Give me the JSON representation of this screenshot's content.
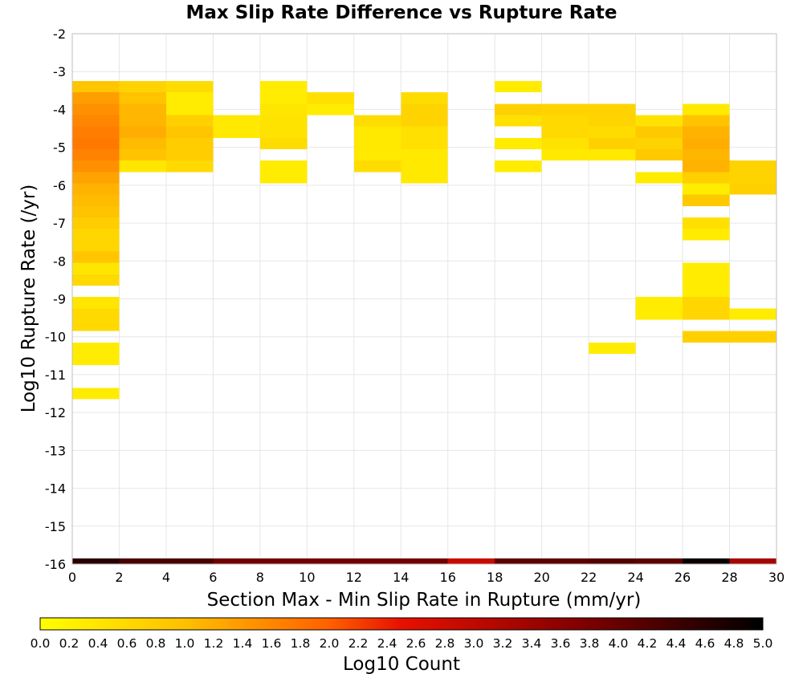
{
  "chart_data": {
    "type": "heatmap",
    "title": "Max Slip Rate Difference vs Rupture Rate",
    "xlabel": "Section Max - Min Slip Rate in Rupture (mm/yr)",
    "ylabel": "Log10 Rupture Rate (/yr)",
    "xlim": [
      0,
      30
    ],
    "ylim": [
      -16,
      -2
    ],
    "x_ticks": [
      "0",
      "2",
      "4",
      "6",
      "8",
      "10",
      "12",
      "14",
      "16",
      "18",
      "20",
      "22",
      "24",
      "26",
      "28",
      "30"
    ],
    "y_ticks": [
      "-2",
      "-3",
      "-4",
      "-5",
      "-6",
      "-7",
      "-8",
      "-9",
      "-10",
      "-11",
      "-12",
      "-13",
      "-14",
      "-15",
      "-16"
    ],
    "x_bin_width": 2,
    "y_bin_height": 0.3,
    "grid": true,
    "colorbar": {
      "label": "Log10 Count",
      "range": [
        0,
        5
      ],
      "ticks": [
        "0.0",
        "0.2",
        "0.4",
        "0.6",
        "0.8",
        "1.0",
        "1.2",
        "1.4",
        "1.6",
        "1.8",
        "2.0",
        "2.2",
        "2.4",
        "2.6",
        "2.8",
        "3.0",
        "3.2",
        "3.4",
        "3.6",
        "3.8",
        "4.0",
        "4.2",
        "4.4",
        "4.6",
        "4.8",
        "5.0"
      ],
      "colors": [
        "#ffff00",
        "#ffc000",
        "#ff6000",
        "#e81000",
        "#800000",
        "#000000"
      ]
    },
    "cells": [
      {
        "x": 0,
        "y": -3.4,
        "v": 0.9
      },
      {
        "x": 0,
        "y": -3.7,
        "v": 1.35
      },
      {
        "x": 0,
        "y": -4.0,
        "v": 1.5
      },
      {
        "x": 0,
        "y": -4.3,
        "v": 1.6
      },
      {
        "x": 0,
        "y": -4.6,
        "v": 1.7
      },
      {
        "x": 0,
        "y": -4.9,
        "v": 1.75
      },
      {
        "x": 0,
        "y": -5.2,
        "v": 1.65
      },
      {
        "x": 0,
        "y": -5.5,
        "v": 1.5
      },
      {
        "x": 0,
        "y": -5.8,
        "v": 1.3
      },
      {
        "x": 0,
        "y": -6.1,
        "v": 1.15
      },
      {
        "x": 0,
        "y": -6.4,
        "v": 1.05
      },
      {
        "x": 0,
        "y": -6.7,
        "v": 0.95
      },
      {
        "x": 0,
        "y": -7.0,
        "v": 0.8
      },
      {
        "x": 0,
        "y": -7.3,
        "v": 0.65
      },
      {
        "x": 0,
        "y": -7.6,
        "v": 0.65
      },
      {
        "x": 0,
        "y": -7.9,
        "v": 0.9
      },
      {
        "x": 0,
        "y": -8.2,
        "v": 0.4
      },
      {
        "x": 0,
        "y": -8.5,
        "v": 0.6
      },
      {
        "x": 0,
        "y": -9.1,
        "v": 0.4
      },
      {
        "x": 0,
        "y": -9.4,
        "v": 0.6
      },
      {
        "x": 0,
        "y": -9.7,
        "v": 0.6
      },
      {
        "x": 0,
        "y": -10.3,
        "v": 0.3
      },
      {
        "x": 0,
        "y": -10.6,
        "v": 0.3
      },
      {
        "x": 0,
        "y": -11.5,
        "v": 0.3
      },
      {
        "x": 2,
        "y": -3.4,
        "v": 0.7
      },
      {
        "x": 2,
        "y": -3.7,
        "v": 0.95
      },
      {
        "x": 2,
        "y": -4.0,
        "v": 1.1
      },
      {
        "x": 2,
        "y": -4.3,
        "v": 1.1
      },
      {
        "x": 2,
        "y": -4.6,
        "v": 1.2
      },
      {
        "x": 2,
        "y": -4.9,
        "v": 1.05
      },
      {
        "x": 2,
        "y": -5.2,
        "v": 0.95
      },
      {
        "x": 2,
        "y": -5.5,
        "v": 0.4
      },
      {
        "x": 4,
        "y": -3.4,
        "v": 0.55
      },
      {
        "x": 4,
        "y": -3.7,
        "v": 0.3
      },
      {
        "x": 4,
        "y": -4.0,
        "v": 0.3
      },
      {
        "x": 4,
        "y": -4.3,
        "v": 0.75
      },
      {
        "x": 4,
        "y": -4.6,
        "v": 0.9
      },
      {
        "x": 4,
        "y": -4.9,
        "v": 0.8
      },
      {
        "x": 4,
        "y": -5.2,
        "v": 0.8
      },
      {
        "x": 4,
        "y": -5.5,
        "v": 0.6
      },
      {
        "x": 6,
        "y": -4.3,
        "v": 0.35
      },
      {
        "x": 6,
        "y": -4.6,
        "v": 0.35
      },
      {
        "x": 8,
        "y": -3.4,
        "v": 0.3
      },
      {
        "x": 8,
        "y": -3.7,
        "v": 0.3
      },
      {
        "x": 8,
        "y": -4.0,
        "v": 0.4
      },
      {
        "x": 8,
        "y": -4.3,
        "v": 0.45
      },
      {
        "x": 8,
        "y": -4.6,
        "v": 0.45
      },
      {
        "x": 8,
        "y": -4.9,
        "v": 0.55
      },
      {
        "x": 8,
        "y": -5.5,
        "v": 0.3
      },
      {
        "x": 8,
        "y": -5.8,
        "v": 0.3
      },
      {
        "x": 10,
        "y": -3.7,
        "v": 0.5
      },
      {
        "x": 10,
        "y": -4.0,
        "v": 0.3
      },
      {
        "x": 12,
        "y": -4.3,
        "v": 0.55
      },
      {
        "x": 12,
        "y": -4.6,
        "v": 0.35
      },
      {
        "x": 12,
        "y": -4.9,
        "v": 0.35
      },
      {
        "x": 12,
        "y": -5.2,
        "v": 0.35
      },
      {
        "x": 12,
        "y": -5.5,
        "v": 0.55
      },
      {
        "x": 14,
        "y": -3.7,
        "v": 0.55
      },
      {
        "x": 14,
        "y": -4.0,
        "v": 0.7
      },
      {
        "x": 14,
        "y": -4.3,
        "v": 0.7
      },
      {
        "x": 14,
        "y": -4.6,
        "v": 0.5
      },
      {
        "x": 14,
        "y": -4.9,
        "v": 0.5
      },
      {
        "x": 14,
        "y": -5.2,
        "v": 0.35
      },
      {
        "x": 14,
        "y": -5.5,
        "v": 0.35
      },
      {
        "x": 14,
        "y": -5.8,
        "v": 0.35
      },
      {
        "x": 18,
        "y": -3.4,
        "v": 0.3
      },
      {
        "x": 18,
        "y": -4.0,
        "v": 0.75
      },
      {
        "x": 18,
        "y": -4.3,
        "v": 0.5
      },
      {
        "x": 18,
        "y": -4.9,
        "v": 0.3
      },
      {
        "x": 18,
        "y": -5.5,
        "v": 0.3
      },
      {
        "x": 20,
        "y": -4.0,
        "v": 0.7
      },
      {
        "x": 20,
        "y": -4.3,
        "v": 0.6
      },
      {
        "x": 20,
        "y": -4.6,
        "v": 0.6
      },
      {
        "x": 20,
        "y": -4.9,
        "v": 0.45
      },
      {
        "x": 20,
        "y": -5.2,
        "v": 0.35
      },
      {
        "x": 22,
        "y": -4.0,
        "v": 0.7
      },
      {
        "x": 22,
        "y": -4.3,
        "v": 0.7
      },
      {
        "x": 22,
        "y": -4.6,
        "v": 0.55
      },
      {
        "x": 22,
        "y": -4.9,
        "v": 0.75
      },
      {
        "x": 22,
        "y": -5.2,
        "v": 0.35
      },
      {
        "x": 22,
        "y": -10.3,
        "v": 0.3
      },
      {
        "x": 24,
        "y": -4.3,
        "v": 0.45
      },
      {
        "x": 24,
        "y": -4.6,
        "v": 0.85
      },
      {
        "x": 24,
        "y": -4.9,
        "v": 0.7
      },
      {
        "x": 24,
        "y": -5.2,
        "v": 0.85
      },
      {
        "x": 24,
        "y": -5.8,
        "v": 0.3
      },
      {
        "x": 24,
        "y": -9.1,
        "v": 0.3
      },
      {
        "x": 24,
        "y": -9.4,
        "v": 0.3
      },
      {
        "x": 26,
        "y": -4.0,
        "v": 0.35
      },
      {
        "x": 26,
        "y": -4.3,
        "v": 0.95
      },
      {
        "x": 26,
        "y": -4.6,
        "v": 1.15
      },
      {
        "x": 26,
        "y": -4.9,
        "v": 1.2
      },
      {
        "x": 26,
        "y": -5.2,
        "v": 1.1
      },
      {
        "x": 26,
        "y": -5.5,
        "v": 1.15
      },
      {
        "x": 26,
        "y": -5.8,
        "v": 0.75
      },
      {
        "x": 26,
        "y": -6.1,
        "v": 0.3
      },
      {
        "x": 26,
        "y": -6.4,
        "v": 0.85
      },
      {
        "x": 26,
        "y": -7.0,
        "v": 0.5
      },
      {
        "x": 26,
        "y": -7.3,
        "v": 0.3
      },
      {
        "x": 26,
        "y": -8.2,
        "v": 0.3
      },
      {
        "x": 26,
        "y": -8.5,
        "v": 0.3
      },
      {
        "x": 26,
        "y": -8.8,
        "v": 0.3
      },
      {
        "x": 26,
        "y": -9.1,
        "v": 0.65
      },
      {
        "x": 26,
        "y": -9.4,
        "v": 0.65
      },
      {
        "x": 26,
        "y": -10.0,
        "v": 0.75
      },
      {
        "x": 28,
        "y": -5.5,
        "v": 0.7
      },
      {
        "x": 28,
        "y": -5.8,
        "v": 0.7
      },
      {
        "x": 28,
        "y": -6.1,
        "v": 0.75
      },
      {
        "x": 28,
        "y": -9.4,
        "v": 0.3
      },
      {
        "x": 28,
        "y": -10.0,
        "v": 0.75
      }
    ],
    "bottom_row_y": -16,
    "bottom_row": [
      {
        "x": 0,
        "v": 4.6
      },
      {
        "x": 2,
        "v": 4.3
      },
      {
        "x": 4,
        "v": 4.3
      },
      {
        "x": 6,
        "v": 3.9
      },
      {
        "x": 8,
        "v": 3.9
      },
      {
        "x": 10,
        "v": 3.9
      },
      {
        "x": 12,
        "v": 3.9
      },
      {
        "x": 14,
        "v": 3.9
      },
      {
        "x": 16,
        "v": 2.9
      },
      {
        "x": 18,
        "v": 4.1
      },
      {
        "x": 20,
        "v": 4.1
      },
      {
        "x": 22,
        "v": 4.2
      },
      {
        "x": 24,
        "v": 4.1
      },
      {
        "x": 26,
        "v": 4.9
      },
      {
        "x": 28,
        "v": 3.3
      }
    ]
  }
}
